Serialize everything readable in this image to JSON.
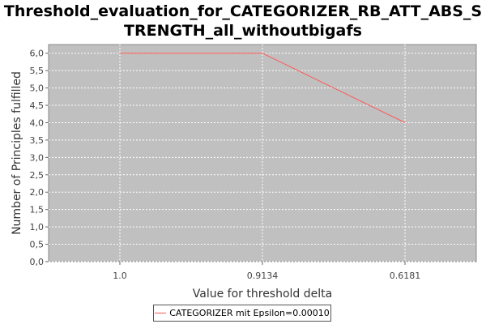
{
  "chart_data": {
    "type": "line",
    "title": "Threshold_evaluation_for_CATEGORIZER_RB_ATT_ABS_STRENGTH_all_withoutbigafs",
    "xlabel": "Value for threshold delta",
    "ylabel": "Number of Principles fulfilled",
    "categories": [
      "1.0",
      "0.9134",
      "0.6181"
    ],
    "series": [
      {
        "name": "CATEGORIZER mit Epsilon=0.00010",
        "values": [
          6.0,
          6.0,
          4.0
        ],
        "color": "#ff5555"
      }
    ],
    "yticks": [
      "0,0",
      "0,5",
      "1,0",
      "1,5",
      "2,0",
      "2,5",
      "3,0",
      "3,5",
      "4,0",
      "4,5",
      "5,0",
      "5,5",
      "6,0"
    ],
    "ylim": [
      0,
      6.25
    ],
    "grid": true,
    "legend_position": "bottom",
    "plot_background": "#c0c0c0",
    "grid_color": "#ffffff"
  }
}
